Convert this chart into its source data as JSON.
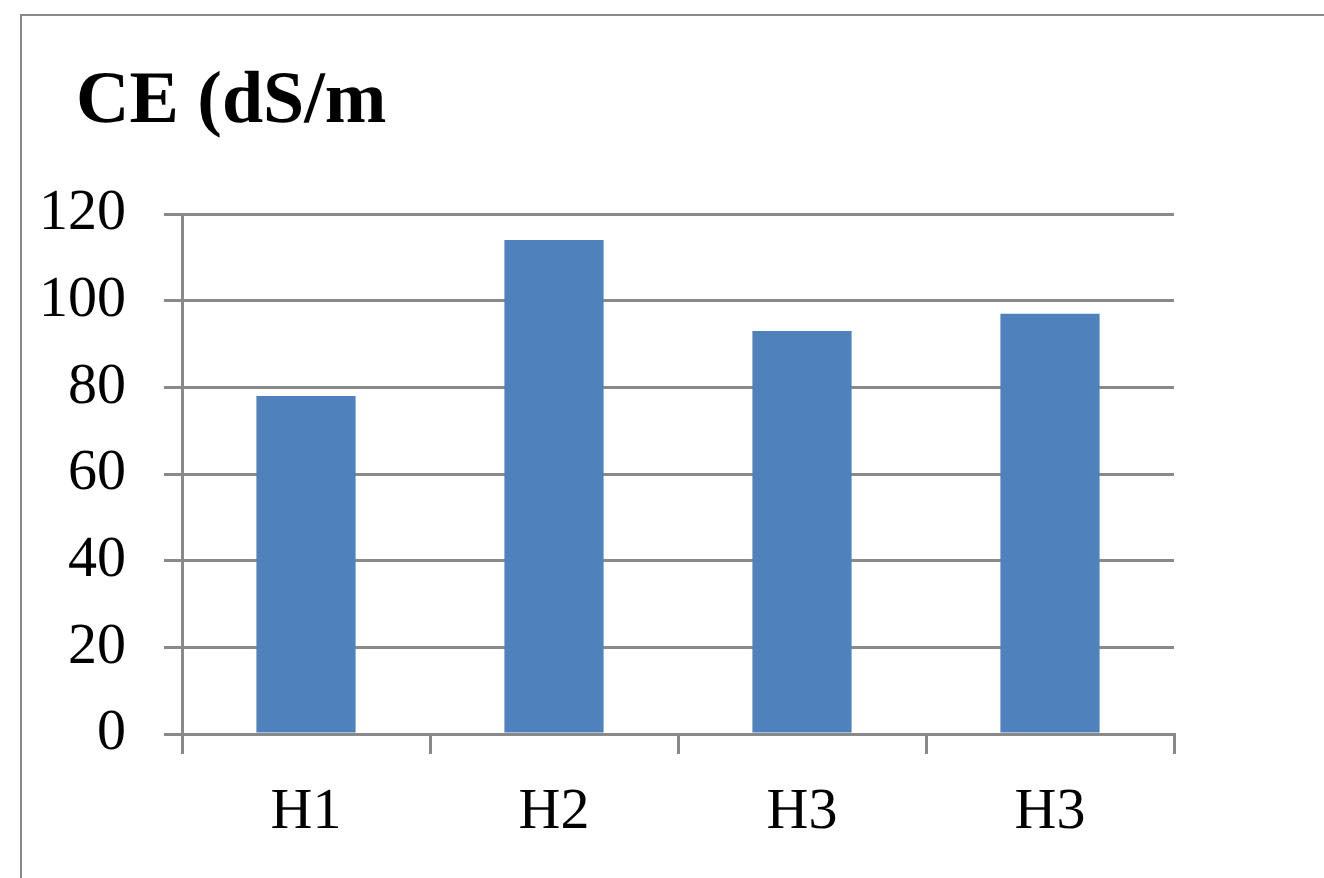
{
  "chart_data": {
    "type": "bar",
    "title": "CE (dS/m",
    "categories": [
      "H1",
      "H2",
      "H3",
      "H3"
    ],
    "values": [
      78,
      114,
      93,
      97
    ],
    "color": "#4f81bd",
    "ylim": [
      0,
      120
    ],
    "yticks": [
      0,
      20,
      40,
      60,
      80,
      100,
      120
    ],
    "grid": "y"
  }
}
